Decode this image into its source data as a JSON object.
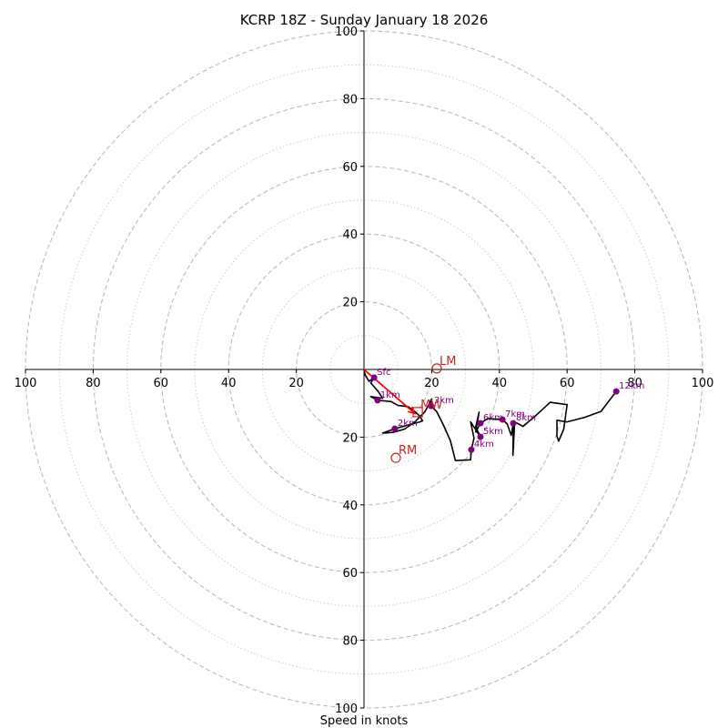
{
  "chart_data": {
    "type": "line",
    "subtype": "hodograph",
    "title": "KCRP 18Z - Sunday January 18 2026",
    "xlabel": "Speed in knots",
    "ylabel": "",
    "units": "knots",
    "range": [
      0,
      100
    ],
    "ring_major": [
      20,
      40,
      60,
      80,
      100
    ],
    "ring_minor": [
      10,
      30,
      50,
      70,
      90
    ],
    "ticks": {
      "top": [
        "20",
        "40",
        "60",
        "80",
        "100"
      ],
      "bottom": [
        "20",
        "40",
        "60",
        "80",
        "100"
      ],
      "left": [
        "20",
        "40",
        "60",
        "80",
        "100"
      ],
      "right": [
        "20",
        "40",
        "60",
        "80",
        "100"
      ]
    },
    "grid": true,
    "trace": {
      "color": "#000000",
      "points_uv": [
        [
          0,
          0
        ],
        [
          0.3,
          -1.6
        ],
        [
          1.5,
          -3.5
        ],
        [
          3.0,
          -2.4
        ],
        [
          2.0,
          -4.0
        ],
        [
          4.2,
          -6.5
        ],
        [
          5.5,
          -8.5
        ],
        [
          2.0,
          -8.0
        ],
        [
          4.0,
          -9.1
        ],
        [
          8.0,
          -9.5
        ],
        [
          10.0,
          -10.6
        ],
        [
          13.0,
          -11.0
        ],
        [
          14.5,
          -12.0
        ],
        [
          16.5,
          -13.8
        ],
        [
          17.3,
          -15.2
        ],
        [
          16.5,
          -15.5
        ],
        [
          13.5,
          -16.3
        ],
        [
          9.1,
          -17.5
        ],
        [
          5.5,
          -18.8
        ],
        [
          8.5,
          -18.6
        ],
        [
          12.0,
          -17.6
        ],
        [
          15.0,
          -15.5
        ],
        [
          18.0,
          -12.5
        ],
        [
          20.0,
          -8.7
        ],
        [
          19.9,
          -10.8
        ],
        [
          21.5,
          -12.5
        ],
        [
          23.5,
          -16.5
        ],
        [
          25.5,
          -21.0
        ],
        [
          27.0,
          -26.9
        ],
        [
          31.5,
          -26.7
        ],
        [
          31.7,
          -23.7
        ],
        [
          32.5,
          -20.3
        ],
        [
          31.5,
          -15.5
        ],
        [
          34.4,
          -19.9
        ],
        [
          33.0,
          -17.0
        ],
        [
          34.0,
          -12.6
        ],
        [
          33.0,
          -18.5
        ],
        [
          34.4,
          -15.9
        ],
        [
          36.5,
          -14.5
        ],
        [
          40.9,
          -14.8
        ],
        [
          42.3,
          -16.1
        ],
        [
          43.5,
          -19.5
        ],
        [
          44.1,
          -15.9
        ],
        [
          44.0,
          -25.4
        ],
        [
          44.5,
          -15.5
        ],
        [
          47.0,
          -16.8
        ],
        [
          51.0,
          -13.4
        ],
        [
          55.0,
          -9.7
        ],
        [
          60.0,
          -10.4
        ],
        [
          59.0,
          -17.6
        ],
        [
          57.5,
          -21.2
        ],
        [
          57.0,
          -19.7
        ],
        [
          57.0,
          -15.0
        ],
        [
          60.0,
          -15.5
        ],
        [
          65.0,
          -14.2
        ],
        [
          70.0,
          -12.4
        ],
        [
          74.5,
          -6.5
        ]
      ]
    },
    "heights": [
      {
        "label": "Sfc",
        "u": 3.0,
        "v": -2.4
      },
      {
        "label": "1km",
        "u": 4.0,
        "v": -9.1
      },
      {
        "label": "2km",
        "u": 9.1,
        "v": -17.5
      },
      {
        "label": "3km",
        "u": 19.9,
        "v": -10.8
      },
      {
        "label": "4km",
        "u": 31.7,
        "v": -23.7
      },
      {
        "label": "5km",
        "u": 34.4,
        "v": -19.9
      },
      {
        "label": "6km",
        "u": 34.4,
        "v": -15.9
      },
      {
        "label": "7km",
        "u": 40.9,
        "v": -14.8
      },
      {
        "label": "8km",
        "u": 44.1,
        "v": -15.9
      },
      {
        "label": "12km",
        "u": 74.5,
        "v": -6.5
      }
    ],
    "height_marker_color": "#800080",
    "motions": [
      {
        "label": "LM",
        "u": 21.5,
        "v": 0.3,
        "marker": "circle"
      },
      {
        "label": "RM",
        "u": 9.4,
        "v": -26.1,
        "marker": "circle"
      },
      {
        "label": "MW",
        "u": 15.9,
        "v": -12.6,
        "marker": "square"
      }
    ],
    "motion_color": "#cc2222",
    "shear_vector": {
      "from": [
        0,
        0
      ],
      "to": [
        15.0,
        -13.0
      ],
      "color": "#ff0000"
    }
  }
}
